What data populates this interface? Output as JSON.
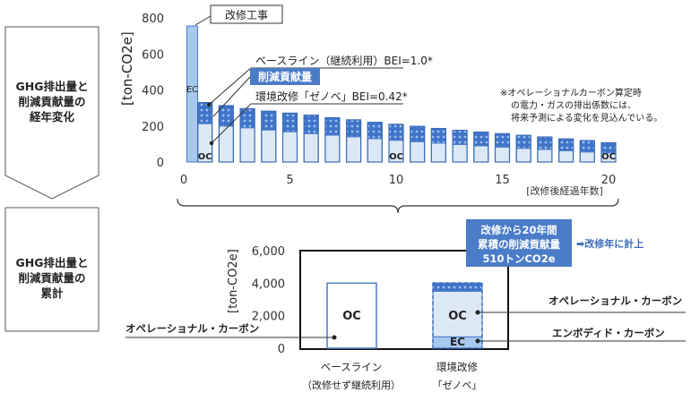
{
  "side_labels": {
    "top": [
      "GHG排出量と",
      "削減貢献量の",
      "経年変化"
    ],
    "bottom": [
      "GHG排出量と",
      "削減貢献量の",
      "累計"
    ]
  },
  "chart_data": [
    {
      "type": "bar",
      "ylabel": "[ton-CO2e]",
      "y_ticks": [
        0,
        200,
        400,
        600,
        800
      ],
      "ylim": [
        0,
        800
      ],
      "x_ticks": [
        0,
        5,
        10,
        15,
        20
      ],
      "xlabel": "[改修後経過年数]",
      "x": [
        1,
        2,
        3,
        4,
        5,
        6,
        7,
        8,
        9,
        10,
        11,
        12,
        13,
        14,
        15,
        16,
        17,
        18,
        19,
        20
      ],
      "series": [
        {
          "name": "ベースライン（継続利用）BEI=1.0*",
          "values": [
            330,
            313,
            296,
            282,
            271,
            260,
            246,
            234,
            220,
            209,
            198,
            186,
            176,
            166,
            157,
            148,
            139,
            128,
            119,
            107
          ]
        },
        {
          "name": "環境改修「ゼノベ」BEI=0.42*",
          "values": [
            213,
            200,
            190,
            178,
            168,
            158,
            149,
            140,
            130,
            121,
            113,
            105,
            97,
            90,
            83,
            76,
            70,
            63,
            56,
            50
          ]
        }
      ],
      "ec_bar": {
        "x": 0.4,
        "value": 755
      },
      "annotations": {
        "construction": "改修工事",
        "baseline": "ベースライン（継続利用）BEI=1.0*",
        "reduction": "削減貢献量",
        "renovation": "環境改修「ゼノベ」BEI=0.42*",
        "ec": "EC",
        "oc": "OC",
        "note": [
          "※オペレーショナルカーボン算定時",
          "の電力・ガスの排出係数には、",
          "将来予測による変化を見込んでいる。"
        ]
      }
    },
    {
      "type": "bar",
      "ylabel": "[ton-CO2e]",
      "y_ticks": [
        "0",
        "2,000",
        "4,000",
        "6,000"
      ],
      "ylim": [
        0,
        6000
      ],
      "categories": [
        "ベースライン",
        "環境改修"
      ],
      "category_sublabels": [
        "（改修せず継続利用）",
        "「ゼノベ」"
      ],
      "stacks": [
        {
          "oc": 4000
        },
        {
          "ec": 700,
          "oc": 2800,
          "reduction": 510
        }
      ],
      "annotations": {
        "oc": "OC",
        "ec": "EC",
        "callout": [
          "改修から20年間",
          "累積の削減貢献量",
          "510トンCO2e"
        ],
        "callout_note": "➡改修年に計上",
        "label_operational_right": "オペレーショナル・カーボン",
        "label_embodied_right": "エンボディド・カーボン",
        "label_operational_left": "オペレーショナル・カーボン"
      }
    }
  ]
}
